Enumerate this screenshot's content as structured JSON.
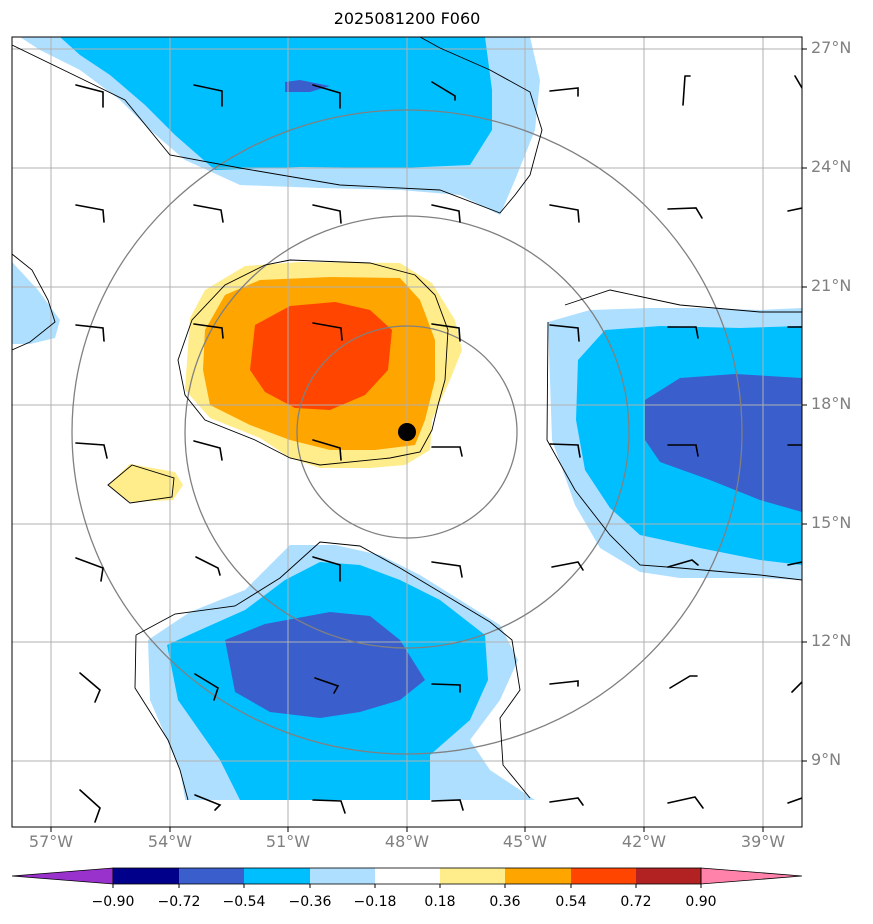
{
  "title": "2025081200 F060",
  "map": {
    "lon_range": [
      -58,
      -38
    ],
    "lat_range": [
      7.5,
      27.5
    ],
    "lat_ticks": [
      {
        "value": 27,
        "label": "27°N"
      },
      {
        "value": 24,
        "label": "24°N"
      },
      {
        "value": 21,
        "label": "21°N"
      },
      {
        "value": 18,
        "label": "18°N"
      },
      {
        "value": 15,
        "label": "15°N"
      },
      {
        "value": 12,
        "label": "12°N"
      },
      {
        "value": 9,
        "label": "9°N"
      }
    ],
    "lon_ticks": [
      {
        "value": -57,
        "label": "57°W"
      },
      {
        "value": -54,
        "label": "54°W"
      },
      {
        "value": -51,
        "label": "51°W"
      },
      {
        "value": -48,
        "label": "48°W"
      },
      {
        "value": -45,
        "label": "45°W"
      },
      {
        "value": -42,
        "label": "42°W"
      },
      {
        "value": -39,
        "label": "39°W"
      }
    ],
    "storm_center": {
      "lon": -48,
      "lat": 17.3
    },
    "range_rings_deg": [
      2,
      5.6,
      8.5
    ]
  },
  "colorbar": {
    "ticks": [
      "−0.90",
      "−0.72",
      "−0.54",
      "−0.36",
      "−0.18",
      "0.18",
      "0.36",
      "0.54",
      "0.72",
      "0.90"
    ],
    "colors": [
      "#9932cc",
      "#00008b",
      "#3a5fcd",
      "#00bfff",
      "#afdfff",
      "#ffffff",
      "#ffec8b",
      "#ffa500",
      "#ff4500",
      "#b22222",
      "#ff82ab"
    ]
  }
}
